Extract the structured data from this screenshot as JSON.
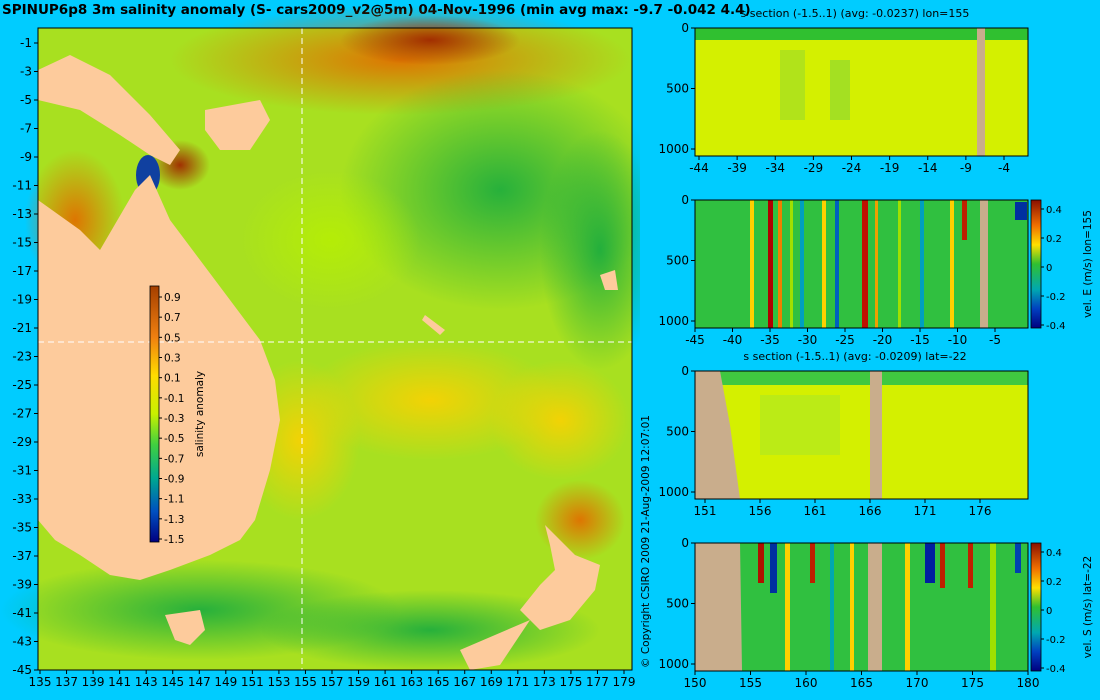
{
  "title": "SPINUP6p8 3m salinity anomaly (S- cars2009_v2@5m) 04-Nov-1996 (min avg max: -9.7 -0.042 4.4)",
  "copyright": "© Copyright CSIRO 2009   21-Aug-2009 12:07:01",
  "colors": {
    "background": "#00ccff",
    "land": "#fdcb9c",
    "section_land": "#c9ad8c",
    "crosshair": "#ffffff"
  },
  "chart_data": [
    {
      "type": "heatmap",
      "name": "salinity-map",
      "title": "SPINUP6p8 3m salinity anomaly (S- cars2009_v2@5m) 04-Nov-1996 (min avg max: -9.7 -0.042 4.4)",
      "x_ticks": [
        "135",
        "137",
        "139",
        "141",
        "143",
        "145",
        "147",
        "149",
        "151",
        "153",
        "155",
        "157",
        "159",
        "161",
        "163",
        "165",
        "167",
        "169",
        "171",
        "173",
        "175",
        "177",
        "179"
      ],
      "y_ticks": [
        "-1",
        "-3",
        "-5",
        "-7",
        "-9",
        "-11",
        "-13",
        "-15",
        "-17",
        "-19",
        "-21",
        "-23",
        "-25",
        "-27",
        "-29",
        "-31",
        "-33",
        "-35",
        "-37",
        "-39",
        "-41",
        "-43",
        "-45"
      ],
      "xlim": [
        134.5,
        180
      ],
      "ylim": [
        -45,
        0
      ],
      "crosshair": {
        "lon": 155,
        "lat": -22
      },
      "colorbar": {
        "label": "salinity anomaly",
        "ticks": [
          "0.9",
          "0.7",
          "0.5",
          "0.3",
          "0.1",
          "-0.1",
          "-0.3",
          "-0.5",
          "-0.7",
          "-0.9",
          "-1.1",
          "-1.3",
          "-1.5"
        ],
        "range": [
          -1.5,
          1.0
        ]
      }
    },
    {
      "type": "heatmap",
      "name": "s-section-lon155",
      "title": "s section (-1.5..1) (avg: -0.0237) lon=155",
      "x_ticks": [
        "-44",
        "-39",
        "-34",
        "-29",
        "-24",
        "-19",
        "-14",
        "-9",
        "-4"
      ],
      "y_ticks": [
        "0",
        "500",
        "1000"
      ],
      "xlim": [
        -45,
        -1
      ],
      "ylim": [
        1050,
        0
      ]
    },
    {
      "type": "heatmap",
      "name": "vel-e-section-lon155",
      "title": "",
      "x_ticks": [
        "-45",
        "-40",
        "-35",
        "-30",
        "-25",
        "-20",
        "-15",
        "-10",
        "-5"
      ],
      "y_ticks": [
        "0",
        "500",
        "1000"
      ],
      "xlim": [
        -45,
        -1
      ],
      "ylim": [
        1050,
        0
      ],
      "colorbar": {
        "label": "vel. E (m/s) lon=155",
        "ticks": [
          "0.4",
          "0.2",
          "0",
          "-0.2",
          "-0.4"
        ],
        "range": [
          -0.4,
          0.45
        ]
      }
    },
    {
      "type": "heatmap",
      "name": "s-section-lat-22",
      "title": "s section (-1.5..1) (avg: -0.0209) lat=-22",
      "x_ticks": [
        "151",
        "156",
        "161",
        "166",
        "171",
        "176"
      ],
      "y_ticks": [
        "0",
        "500",
        "1000"
      ],
      "xlim": [
        150,
        180
      ],
      "ylim": [
        1050,
        0
      ]
    },
    {
      "type": "heatmap",
      "name": "vel-s-section-lat-22",
      "title": "",
      "x_ticks": [
        "150",
        "155",
        "160",
        "165",
        "170",
        "175",
        "180"
      ],
      "y_ticks": [
        "0",
        "500",
        "1000"
      ],
      "xlim": [
        150,
        180
      ],
      "ylim": [
        1050,
        0
      ],
      "colorbar": {
        "label": "vel. S (m/s) lat=-22",
        "ticks": [
          "0.4",
          "0.2",
          "0",
          "-0.2",
          "-0.4"
        ],
        "range": [
          -0.4,
          0.45
        ]
      }
    }
  ]
}
